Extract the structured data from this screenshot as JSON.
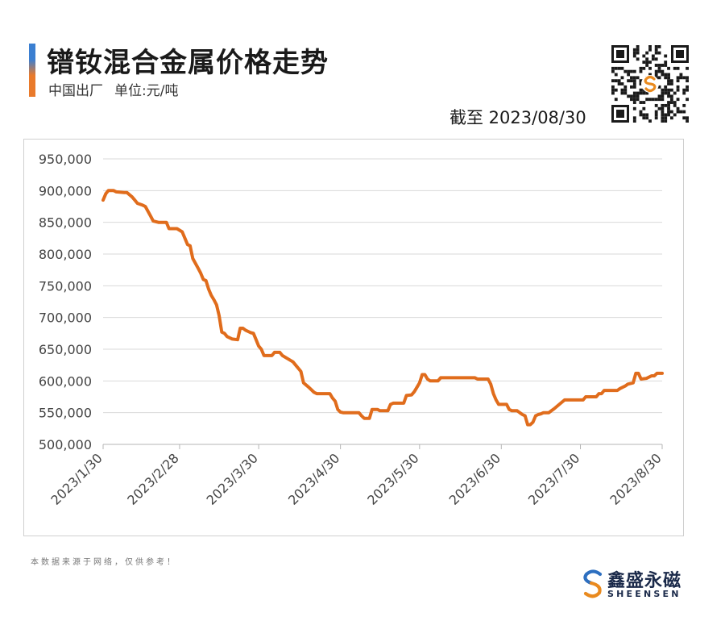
{
  "header": {
    "title": "镨钕混合金属价格走势",
    "subtitle_origin": "中国出厂",
    "subtitle_unit": "单位:元/吨",
    "date_note": "截至 2023/08/30"
  },
  "footer": {
    "note": "本数据来源于网络，仅供参考！",
    "brand_name": "鑫盛永磁",
    "brand_sub": "SHEENSEN"
  },
  "colors": {
    "line": "#e06c1c",
    "grid": "#d9d9d9",
    "axis_text": "#444444",
    "brand_blue": "#2d6fc0",
    "brand_orange": "#e98a1f"
  },
  "chart_data": {
    "type": "line",
    "title": "",
    "xlabel": "",
    "ylabel": "",
    "ylim": [
      500000,
      950000
    ],
    "y_ticks": [
      500000,
      550000,
      600000,
      650000,
      700000,
      750000,
      800000,
      850000,
      900000,
      950000
    ],
    "y_tick_labels": [
      "500,000",
      "550,000",
      "600,000",
      "650,000",
      "700,000",
      "750,000",
      "800,000",
      "850,000",
      "900,000",
      "950,000"
    ],
    "x_tick_labels": [
      "2023/1/30",
      "2023/2/28",
      "2023/3/30",
      "2023/4/30",
      "2023/5/30",
      "2023/6/30",
      "2023/7/30",
      "2023/8/30"
    ],
    "x_range": [
      "2023-01-30",
      "2023-08-30"
    ],
    "grid": "horizontal",
    "series": [
      {
        "points": [
          [
            "2023-01-30",
            885000
          ],
          [
            "2023-01-31",
            895000
          ],
          [
            "2023-02-01",
            900000
          ],
          [
            "2023-02-03",
            900000
          ],
          [
            "2023-02-04",
            898000
          ],
          [
            "2023-02-07",
            897000
          ],
          [
            "2023-02-08",
            897000
          ],
          [
            "2023-02-10",
            890000
          ],
          [
            "2023-02-11",
            885000
          ],
          [
            "2023-02-12",
            880000
          ],
          [
            "2023-02-14",
            877000
          ],
          [
            "2023-02-15",
            875000
          ],
          [
            "2023-02-17",
            860000
          ],
          [
            "2023-02-18",
            852000
          ],
          [
            "2023-02-20",
            850000
          ],
          [
            "2023-02-23",
            850000
          ],
          [
            "2023-02-24",
            840000
          ],
          [
            "2023-02-27",
            840000
          ],
          [
            "2023-03-01",
            835000
          ],
          [
            "2023-03-02",
            825000
          ],
          [
            "2023-03-03",
            815000
          ],
          [
            "2023-03-04",
            813000
          ],
          [
            "2023-03-05",
            793000
          ],
          [
            "2023-03-07",
            778000
          ],
          [
            "2023-03-08",
            770000
          ],
          [
            "2023-03-09",
            760000
          ],
          [
            "2023-03-10",
            758000
          ],
          [
            "2023-03-11",
            745000
          ],
          [
            "2023-03-12",
            735000
          ],
          [
            "2023-03-13",
            728000
          ],
          [
            "2023-03-14",
            720000
          ],
          [
            "2023-03-15",
            703000
          ],
          [
            "2023-03-16",
            677000
          ],
          [
            "2023-03-17",
            675000
          ],
          [
            "2023-03-18",
            670000
          ],
          [
            "2023-03-20",
            666000
          ],
          [
            "2023-03-22",
            665000
          ],
          [
            "2023-03-23",
            683000
          ],
          [
            "2023-03-24",
            683000
          ],
          [
            "2023-03-25",
            680000
          ],
          [
            "2023-03-27",
            676000
          ],
          [
            "2023-03-28",
            675000
          ],
          [
            "2023-03-29",
            665000
          ],
          [
            "2023-03-30",
            655000
          ],
          [
            "2023-03-31",
            650000
          ],
          [
            "2023-04-01",
            640000
          ],
          [
            "2023-04-04",
            640000
          ],
          [
            "2023-04-05",
            645000
          ],
          [
            "2023-04-07",
            645000
          ],
          [
            "2023-04-08",
            640000
          ],
          [
            "2023-04-10",
            635000
          ],
          [
            "2023-04-12",
            630000
          ],
          [
            "2023-04-13",
            625000
          ],
          [
            "2023-04-15",
            615000
          ],
          [
            "2023-04-16",
            597000
          ],
          [
            "2023-04-18",
            590000
          ],
          [
            "2023-04-20",
            582000
          ],
          [
            "2023-04-21",
            580000
          ],
          [
            "2023-04-26",
            580000
          ],
          [
            "2023-04-27",
            573000
          ],
          [
            "2023-04-28",
            568000
          ],
          [
            "2023-04-29",
            555000
          ],
          [
            "2023-04-30",
            551000
          ],
          [
            "2023-05-01",
            550000
          ],
          [
            "2023-05-07",
            550000
          ],
          [
            "2023-05-08",
            545000
          ],
          [
            "2023-05-09",
            541000
          ],
          [
            "2023-05-11",
            541000
          ],
          [
            "2023-05-12",
            555000
          ],
          [
            "2023-05-14",
            555000
          ],
          [
            "2023-05-15",
            553000
          ],
          [
            "2023-05-18",
            553000
          ],
          [
            "2023-05-19",
            563000
          ],
          [
            "2023-05-20",
            565000
          ],
          [
            "2023-05-24",
            565000
          ],
          [
            "2023-05-25",
            577000
          ],
          [
            "2023-05-27",
            578000
          ],
          [
            "2023-05-28",
            583000
          ],
          [
            "2023-05-29",
            590000
          ],
          [
            "2023-05-30",
            597000
          ],
          [
            "2023-05-31",
            610000
          ],
          [
            "2023-06-01",
            610000
          ],
          [
            "2023-06-02",
            603000
          ],
          [
            "2023-06-03",
            600000
          ],
          [
            "2023-06-06",
            600000
          ],
          [
            "2023-06-07",
            605000
          ],
          [
            "2023-06-20",
            605000
          ],
          [
            "2023-06-21",
            603000
          ],
          [
            "2023-06-25",
            603000
          ],
          [
            "2023-06-26",
            595000
          ],
          [
            "2023-06-27",
            580000
          ],
          [
            "2023-06-28",
            570000
          ],
          [
            "2023-06-29",
            563000
          ],
          [
            "2023-07-02",
            563000
          ],
          [
            "2023-07-03",
            555000
          ],
          [
            "2023-07-04",
            553000
          ],
          [
            "2023-07-06",
            553000
          ],
          [
            "2023-07-07",
            550000
          ],
          [
            "2023-07-08",
            547000
          ],
          [
            "2023-07-09",
            545000
          ],
          [
            "2023-07-10",
            531000
          ],
          [
            "2023-07-11",
            531000
          ],
          [
            "2023-07-12",
            535000
          ],
          [
            "2023-07-13",
            545000
          ],
          [
            "2023-07-14",
            547000
          ],
          [
            "2023-07-15",
            548000
          ],
          [
            "2023-07-16",
            550000
          ],
          [
            "2023-07-18",
            550000
          ],
          [
            "2023-07-19",
            553000
          ],
          [
            "2023-07-20",
            556000
          ],
          [
            "2023-07-22",
            563000
          ],
          [
            "2023-07-24",
            570000
          ],
          [
            "2023-07-25",
            570000
          ],
          [
            "2023-07-31",
            570000
          ],
          [
            "2023-08-01",
            575000
          ],
          [
            "2023-08-05",
            575000
          ],
          [
            "2023-08-06",
            580000
          ],
          [
            "2023-08-07",
            580000
          ],
          [
            "2023-08-08",
            585000
          ],
          [
            "2023-08-13",
            585000
          ],
          [
            "2023-08-14",
            588000
          ],
          [
            "2023-08-15",
            590000
          ],
          [
            "2023-08-16",
            592000
          ],
          [
            "2023-08-17",
            595000
          ],
          [
            "2023-08-19",
            597000
          ],
          [
            "2023-08-20",
            612000
          ],
          [
            "2023-08-21",
            612000
          ],
          [
            "2023-08-22",
            603000
          ],
          [
            "2023-08-24",
            604000
          ],
          [
            "2023-08-26",
            608000
          ],
          [
            "2023-08-27",
            608000
          ],
          [
            "2023-08-28",
            612000
          ],
          [
            "2023-08-30",
            612000
          ]
        ]
      }
    ]
  }
}
